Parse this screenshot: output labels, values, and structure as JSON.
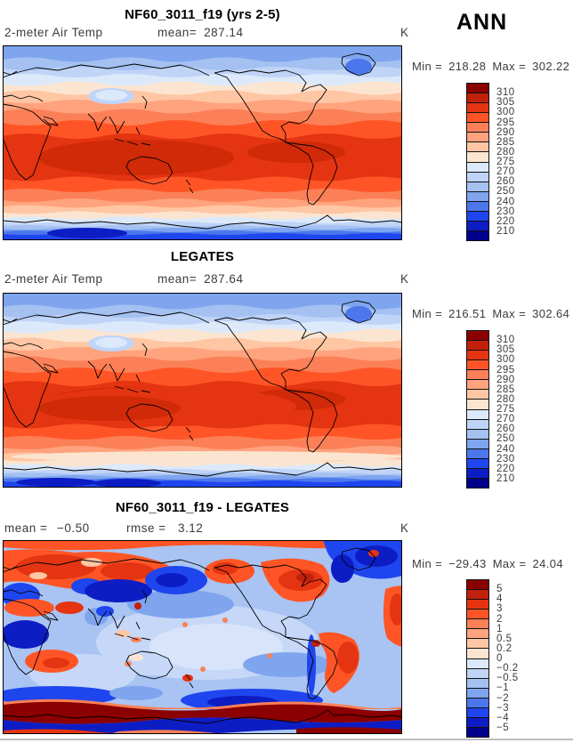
{
  "figure": {
    "season": "ANN"
  },
  "palette": [
    "#8B0000",
    "#C1200B",
    "#E43411",
    "#FF5526",
    "#FB8057",
    "#FFA37E",
    "#FFC6A4",
    "#FBE5D1",
    "#DCE9FB",
    "#C0D4F7",
    "#A4C1F2",
    "#7FA5EE",
    "#4C77EC",
    "#1F45EE",
    "#0D1DC4",
    "#00008B"
  ],
  "panels": [
    {
      "title": "NF60_3011_f19 (yrs 2-5)",
      "variable": "2-meter Air Temp",
      "mean_label": "mean=",
      "mean_value": "287.14",
      "units": "K",
      "min_label": "Min =",
      "min_value": "218.28",
      "max_label": "Max =",
      "max_value": "302.22",
      "colorbar_labels": [
        "310",
        "305",
        "300",
        "295",
        "290",
        "285",
        "280",
        "275",
        "270",
        "260",
        "250",
        "240",
        "230",
        "220",
        "210"
      ]
    },
    {
      "title": "LEGATES",
      "variable": "2-meter Air Temp",
      "mean_label": "mean=",
      "mean_value": "287.64",
      "units": "K",
      "min_label": "Min =",
      "min_value": "216.51",
      "max_label": "Max =",
      "max_value": "302.64",
      "colorbar_labels": [
        "310",
        "305",
        "300",
        "295",
        "290",
        "285",
        "280",
        "275",
        "270",
        "260",
        "250",
        "240",
        "230",
        "220",
        "210"
      ]
    },
    {
      "title": "NF60_3011_f19 - LEGATES",
      "mean_label": "mean =",
      "mean_value": "−0.50",
      "rmse_label": "rmse =",
      "rmse_value": "3.12",
      "units": "K",
      "min_label": "Min =",
      "min_value": "−29.43",
      "max_label": "Max =",
      "max_value": "24.04",
      "colorbar_labels": [
        "5",
        "4",
        "3",
        "2",
        "1",
        "0.5",
        "0.2",
        "0",
        "−0.2",
        "−0.5",
        "−1",
        "−2",
        "−3",
        "−4",
        "−5"
      ]
    }
  ],
  "chart_data": [
    {
      "type": "heatmap",
      "title": "NF60_3011_f19 (yrs 2-5)",
      "variable": "2-meter Air Temp",
      "units": "K",
      "season": "ANN",
      "mean": 287.14,
      "min": 218.28,
      "max": 302.22,
      "contour_levels": [
        210,
        220,
        230,
        240,
        250,
        260,
        270,
        275,
        280,
        285,
        290,
        295,
        300,
        305,
        310
      ],
      "legend_position": "right",
      "map_style": "global filled-contour map, Pacific-centered, blue-red diverging palette"
    },
    {
      "type": "heatmap",
      "title": "LEGATES",
      "variable": "2-meter Air Temp",
      "units": "K",
      "season": "ANN",
      "mean": 287.64,
      "min": 216.51,
      "max": 302.64,
      "contour_levels": [
        210,
        220,
        230,
        240,
        250,
        260,
        270,
        275,
        280,
        285,
        290,
        295,
        300,
        305,
        310
      ],
      "legend_position": "right",
      "map_style": "global filled-contour map, Pacific-centered, blue-red diverging palette"
    },
    {
      "type": "heatmap",
      "title": "NF60_3011_f19 - LEGATES",
      "variable": "2-meter Air Temp difference",
      "units": "K",
      "season": "ANN",
      "mean": -0.5,
      "rmse": 3.12,
      "min": -29.43,
      "max": 24.04,
      "contour_levels": [
        -5,
        -4,
        -3,
        -2,
        -1,
        -0.5,
        -0.2,
        0,
        0.2,
        0.5,
        1,
        2,
        3,
        4,
        5
      ],
      "legend_position": "right",
      "map_style": "global filled-contour difference map, Pacific-centered, blue-red diverging palette"
    }
  ]
}
